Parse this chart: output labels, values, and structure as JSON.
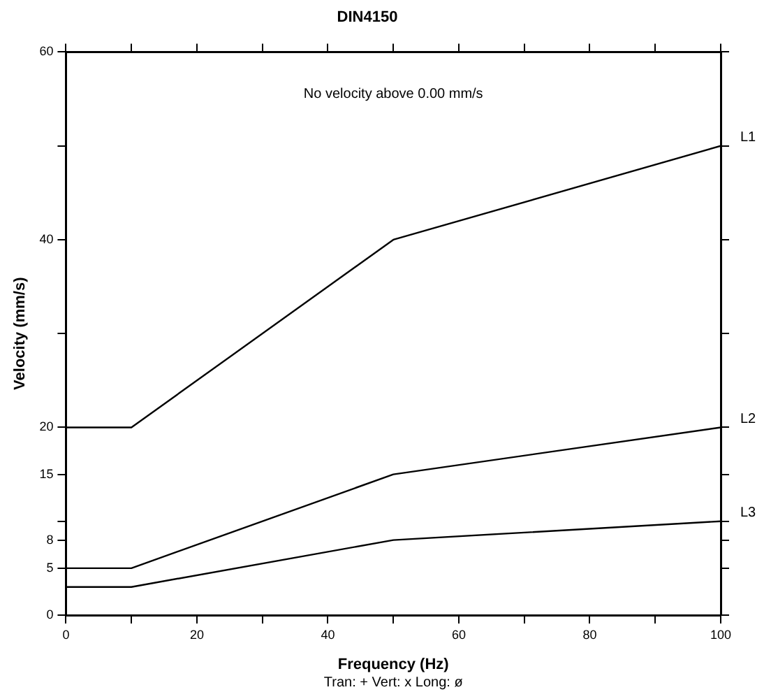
{
  "chart_data": {
    "type": "line",
    "title": "DIN4150",
    "xlabel": "Frequency (Hz)",
    "ylabel": "Velocity (mm/s)",
    "annotations": [
      "No velocity above 0.00 mm/s",
      "Tran: + Vert: x Long: ø"
    ],
    "series": [
      {
        "name": "L1",
        "color": "#000000",
        "x": [
          0,
          10,
          50,
          100
        ],
        "values": [
          20,
          20,
          40,
          50
        ]
      },
      {
        "name": "L2",
        "color": "#000000",
        "x": [
          0,
          10,
          50,
          100
        ],
        "values": [
          5,
          5,
          15,
          20
        ]
      },
      {
        "name": "L3",
        "color": "#000000",
        "x": [
          0,
          10,
          50,
          100
        ],
        "values": [
          3,
          3,
          8,
          10
        ]
      }
    ],
    "xlim": [
      0,
      100
    ],
    "xticks": [
      0,
      {
        "value": 10,
        "label": null
      },
      20,
      {
        "value": 30,
        "label": null
      },
      40,
      {
        "value": 50,
        "label": null
      },
      60,
      {
        "value": 70,
        "label": null
      },
      80,
      {
        "value": 90,
        "label": null
      },
      100
    ],
    "ylim": [
      0,
      60
    ],
    "yticks": [
      0,
      5,
      8,
      {
        "value": 10,
        "label": null
      },
      15,
      20,
      {
        "value": 30,
        "label": null
      },
      40,
      {
        "value": 50,
        "label": null
      },
      60
    ],
    "grid": false,
    "legend": "right",
    "marker": "none",
    "line_style": "solid"
  }
}
